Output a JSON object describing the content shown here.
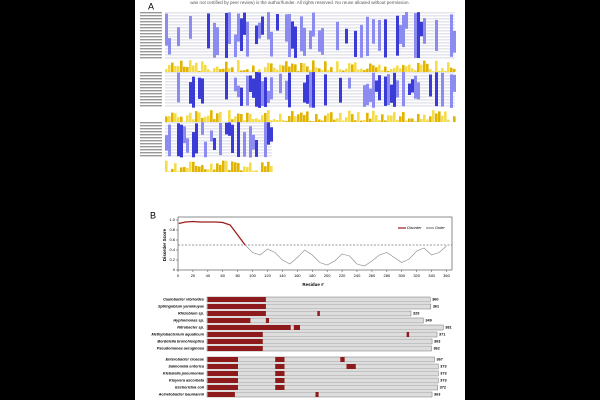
{
  "notice": "was not certified by peer review) is the author/funder. All rights reserved. No reuse allowed without permission.",
  "panel_a": {
    "label": "A"
  },
  "panel_b": {
    "label": "B",
    "chart_data": {
      "type": "line",
      "x_label": "Residue #",
      "y_label": "Disorder Score",
      "xlim": [
        0,
        362
      ],
      "ylim": [
        0,
        1
      ],
      "xticks": [
        0,
        20,
        40,
        60,
        80,
        100,
        120,
        140,
        160,
        180,
        200,
        220,
        240,
        260,
        280,
        300,
        320,
        340,
        360
      ],
      "yticks": [
        0,
        0.2,
        0.4,
        0.6,
        0.8,
        {
          "value": 1,
          "label": "1.0"
        }
      ],
      "threshold": 0.5,
      "legend": "upper right",
      "series": [
        {
          "name": "Disorder",
          "color": "#9b1c1c",
          "x": [
            1,
            10,
            20,
            30,
            40,
            50,
            60,
            70,
            80,
            90
          ],
          "values": [
            0.93,
            0.96,
            0.97,
            0.96,
            0.96,
            0.96,
            0.95,
            0.9,
            0.7,
            0.5
          ]
        },
        {
          "name": "Order",
          "color": "#888888",
          "x": [
            90,
            100,
            110,
            120,
            130,
            140,
            150,
            160,
            170,
            180,
            190,
            200,
            210,
            220,
            230,
            240,
            250,
            260,
            270,
            280,
            290,
            300,
            310,
            320,
            330,
            340,
            350,
            360
          ],
          "values": [
            0.5,
            0.35,
            0.3,
            0.42,
            0.35,
            0.2,
            0.12,
            0.25,
            0.4,
            0.3,
            0.15,
            0.1,
            0.18,
            0.32,
            0.28,
            0.12,
            0.08,
            0.18,
            0.3,
            0.35,
            0.25,
            0.15,
            0.22,
            0.38,
            0.44,
            0.3,
            0.35,
            0.48
          ]
        }
      ]
    },
    "proteins": [
      {
        "name": "Caulobacter vibrioides",
        "length": 360,
        "disordered": [
          [
            1,
            95
          ]
        ]
      },
      {
        "name": "Sphingobium yanoikuyae",
        "length": 361,
        "disordered": [
          [
            1,
            95
          ]
        ]
      },
      {
        "name": "Rhizobium sp.",
        "length": 329,
        "disordered": [
          [
            1,
            95
          ],
          [
            178,
            182
          ]
        ]
      },
      {
        "name": "Hyphomonas sp.",
        "length": 349,
        "disordered": [
          [
            1,
            70
          ],
          [
            95,
            100
          ]
        ]
      },
      {
        "name": "Nitrobacter sp.",
        "length": 381,
        "disordered": [
          [
            1,
            135
          ],
          [
            140,
            150
          ]
        ]
      },
      {
        "name": "Methylobacterium aquaticum",
        "length": 371,
        "disordered": [
          [
            1,
            90
          ],
          [
            322,
            326
          ]
        ]
      },
      {
        "name": "Bordetella bronchiseptica",
        "length": 363,
        "disordered": [
          [
            1,
            90
          ]
        ]
      },
      {
        "name": "Pseudomonas aeruginosa",
        "length": 362,
        "disordered": [
          [
            1,
            90
          ]
        ]
      },
      {
        "name": "Enterobacter cloacae",
        "length": 367,
        "disordered": [
          [
            1,
            50
          ],
          [
            110,
            125
          ],
          [
            215,
            222
          ]
        ]
      },
      {
        "name": "Salmonella enterica",
        "length": 373,
        "disordered": [
          [
            1,
            50
          ],
          [
            110,
            125
          ],
          [
            225,
            240
          ]
        ]
      },
      {
        "name": "Klebsiella pneumoniae",
        "length": 373,
        "disordered": [
          [
            1,
            50
          ],
          [
            110,
            125
          ]
        ]
      },
      {
        "name": "Kluyvera ascorbata",
        "length": 373,
        "disordered": [
          [
            1,
            50
          ],
          [
            110,
            125
          ]
        ]
      },
      {
        "name": "Escherichia coli",
        "length": 372,
        "disordered": [
          [
            1,
            50
          ],
          [
            110,
            125
          ]
        ]
      },
      {
        "name": "Acinetobacter baumannii",
        "length": 363,
        "disordered": [
          [
            1,
            45
          ],
          [
            175,
            180
          ]
        ]
      }
    ]
  }
}
